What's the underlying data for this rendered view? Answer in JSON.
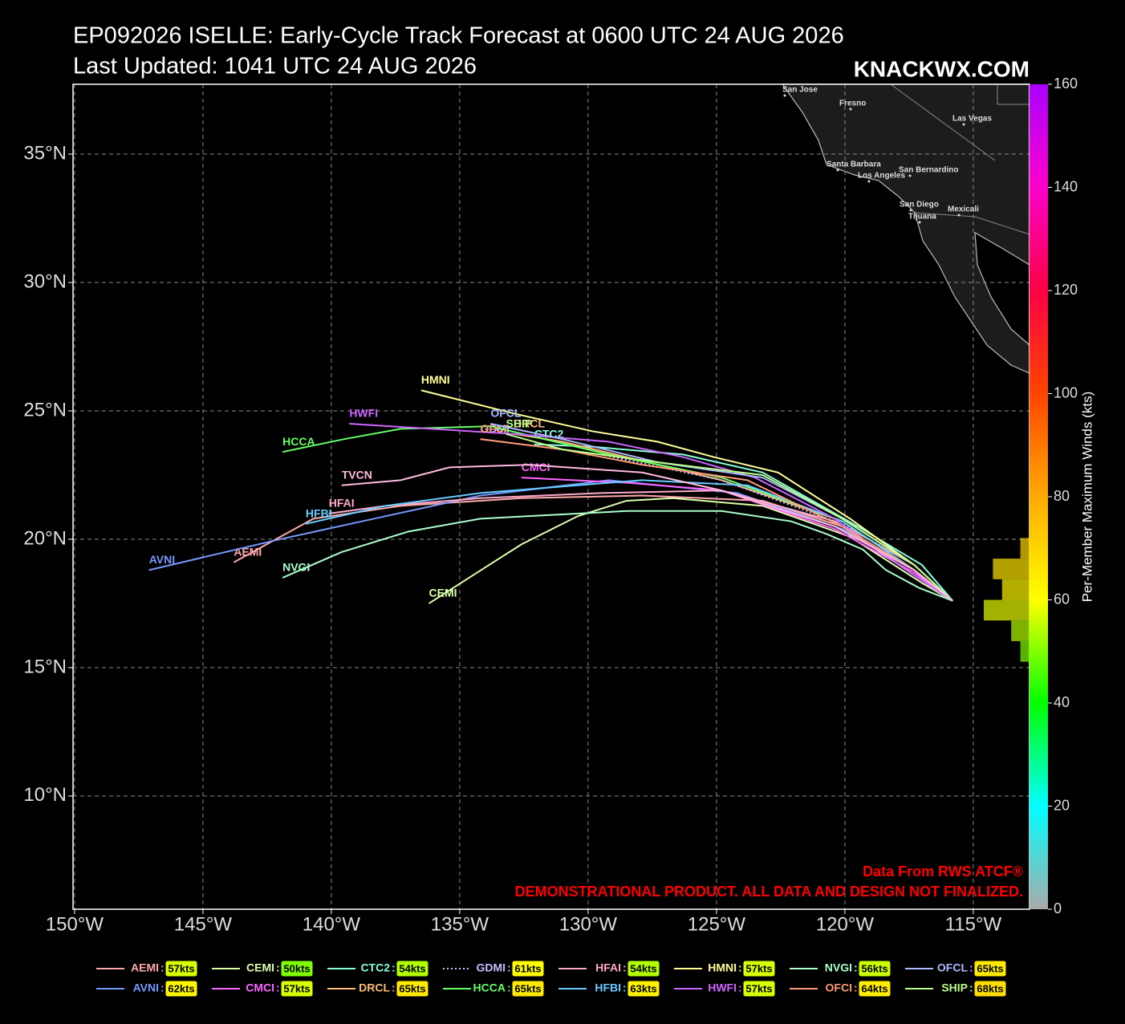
{
  "chart_data": {
    "type": "line",
    "title": "EP092026 ISELLE: Early-Cycle Track Forecast at 0600 UTC 24 AUG 2026",
    "subtitle": "Last Updated: 1041 UTC 24 AUG 2026",
    "brand": "KNACKWX.COM",
    "credit": "Data From RWS ATCF®",
    "disclaimer": "DEMONSTRATIONAL PRODUCT. ALL DATA AND DESIGN NOT FINALIZED.",
    "colorbar_label": "Per-Member Maximum Winds (kts)",
    "xlim": [
      -150.06,
      -112.81
    ],
    "ylim": [
      5.59,
      37.72
    ],
    "xticks": [
      {
        "value": -150,
        "label": "150°W"
      },
      {
        "value": -145,
        "label": "145°W"
      },
      {
        "value": -140,
        "label": "140°W"
      },
      {
        "value": -135,
        "label": "135°W"
      },
      {
        "value": -130,
        "label": "130°W"
      },
      {
        "value": -125,
        "label": "125°W"
      },
      {
        "value": -120,
        "label": "120°W"
      },
      {
        "value": -115,
        "label": "115°W"
      }
    ],
    "yticks": [
      {
        "value": 10,
        "label": "10°N"
      },
      {
        "value": 15,
        "label": "15°N"
      },
      {
        "value": 20,
        "label": "20°N"
      },
      {
        "value": 25,
        "label": "25°N"
      },
      {
        "value": 30,
        "label": "30°N"
      },
      {
        "value": 35,
        "label": "35°N"
      }
    ],
    "grid": true,
    "clim": [
      0,
      160
    ],
    "cticks": [
      0,
      20,
      40,
      60,
      80,
      100,
      120,
      140,
      160
    ],
    "colormap": [
      "#aaaaaa",
      "#00ffff",
      "#00ff00",
      "#ffff00",
      "#ffaa00",
      "#ff4400",
      "#ff0044",
      "#ff00cc",
      "#aa00ff"
    ],
    "wind_histogram": {
      "bins": [
        48,
        52,
        56,
        60,
        64,
        68,
        72
      ],
      "counts": [
        1,
        2,
        5,
        3,
        4,
        1
      ]
    },
    "cities": [
      "San Jose",
      "Fresno",
      "Las Vegas",
      "Santa Barbara",
      "Los Angeles",
      "San Bernardino",
      "San Diego",
      "Tijuana",
      "Mexicali"
    ],
    "series": [
      {
        "name": "AEMI",
        "color": "#ffaaaa",
        "wind": 57,
        "wind_label": "57kts",
        "x": [
          -115.8,
          -117.3,
          -119.8,
          -123.2,
          -127.9,
          -132.6,
          -137.3,
          -140.7,
          -143.8
        ],
        "y": [
          17.6,
          19.0,
          20.4,
          21.5,
          21.7,
          21.6,
          21.3,
          20.8,
          19.1
        ]
      },
      {
        "name": "AVNI",
        "color": "#7799ff",
        "wind": 62,
        "wind_label": "62kts",
        "x": [
          -115.8,
          -117.3,
          -120.1,
          -124.2,
          -129.2,
          -134.2,
          -138.8,
          -142.0,
          -147.1
        ],
        "y": [
          17.6,
          18.8,
          20.4,
          21.8,
          22.3,
          21.7,
          20.7,
          20.0,
          18.8
        ]
      },
      {
        "name": "CEMI",
        "color": "#ddffaa",
        "wind": 50,
        "wind_label": "50kts",
        "x": [
          -115.8,
          -117.0,
          -119.8,
          -123.2,
          -126.7,
          -128.5,
          -130.4,
          -132.6,
          -136.2
        ],
        "y": [
          17.6,
          18.3,
          20.1,
          21.3,
          21.6,
          21.5,
          20.9,
          19.8,
          17.5
        ]
      },
      {
        "name": "CMCI",
        "color": "#ff66ff",
        "wind": 57,
        "wind_label": "57kts",
        "x": [
          -115.8,
          -117.3,
          -120.4,
          -124.8,
          -128.5,
          -132.6
        ],
        "y": [
          17.6,
          18.7,
          20.4,
          21.9,
          22.2,
          22.4
        ]
      },
      {
        "name": "CTC2",
        "color": "#88ffdd",
        "wind": 54,
        "wind_label": "54kts",
        "x": [
          -115.8,
          -117.0,
          -119.5,
          -123.2,
          -126.3,
          -129.8,
          -132.1
        ],
        "y": [
          17.6,
          19.0,
          20.5,
          22.6,
          23.3,
          23.6,
          23.7
        ]
      },
      {
        "name": "DRCL",
        "color": "#ffbb77",
        "wind": 65,
        "wind_label": "65kts",
        "x": [
          -115.8,
          -117.3,
          -120.1,
          -124.8,
          -128.5,
          -131.0,
          -132.9
        ],
        "y": [
          17.6,
          18.8,
          20.7,
          22.3,
          23.2,
          23.8,
          24.1
        ]
      },
      {
        "name": "GDMI",
        "color": "#ccbbff",
        "linestyle": "dotted",
        "wind": 61,
        "wind_label": "61kts",
        "x": [
          -115.8,
          -117.3,
          -120.1,
          -124.8,
          -129.5,
          -134.2
        ],
        "y": [
          17.6,
          19.0,
          20.6,
          22.3,
          23.3,
          23.9
        ]
      },
      {
        "name": "HCCA",
        "color": "#66ff66",
        "wind": 65,
        "wind_label": "65kts",
        "x": [
          -115.8,
          -117.3,
          -120.1,
          -124.8,
          -129.2,
          -133.8,
          -137.3,
          -139.5,
          -141.9
        ],
        "y": [
          17.6,
          18.8,
          20.7,
          22.4,
          23.3,
          24.4,
          24.3,
          23.9,
          23.4
        ]
      },
      {
        "name": "HFAI",
        "color": "#ffaacc",
        "wind": 54,
        "wind_label": "54kts",
        "x": [
          -115.8,
          -117.6,
          -120.4,
          -124.8,
          -129.5,
          -134.2,
          -137.9,
          -140.1
        ],
        "y": [
          17.6,
          18.8,
          20.7,
          21.9,
          21.8,
          21.6,
          21.3,
          21.0
        ]
      },
      {
        "name": "HFBI",
        "color": "#66ccff",
        "wind": 63,
        "wind_label": "63kts",
        "x": [
          -115.8,
          -117.3,
          -120.1,
          -123.8,
          -127.9,
          -134.2,
          -137.9,
          -141.0
        ],
        "y": [
          17.6,
          18.8,
          20.7,
          22.1,
          22.3,
          21.8,
          21.3,
          20.6
        ]
      },
      {
        "name": "HMNI",
        "color": "#ffff99",
        "wind": 57,
        "wind_label": "57kts",
        "x": [
          -115.8,
          -117.3,
          -119.8,
          -122.6,
          -125.1,
          -127.3,
          -129.8,
          -132.9,
          -136.5
        ],
        "y": [
          17.6,
          19.0,
          20.8,
          22.6,
          23.2,
          23.8,
          24.2,
          24.9,
          25.8
        ]
      },
      {
        "name": "HWFI",
        "color": "#cc66ff",
        "wind": 57,
        "wind_label": "57kts",
        "x": [
          -115.8,
          -117.6,
          -120.4,
          -123.5,
          -126.3,
          -129.2,
          -132.9,
          -139.3
        ],
        "y": [
          17.6,
          18.8,
          20.8,
          22.4,
          23.2,
          23.8,
          24.1,
          24.5
        ]
      },
      {
        "name": "NVGI",
        "color": "#aaffcc",
        "wind": 56,
        "wind_label": "56kts",
        "x": [
          -115.8,
          -117.1,
          -118.4,
          -119.3,
          -120.7,
          -122.1,
          -124.8,
          -128.5,
          -134.2,
          -137.0,
          -139.6,
          -141.9
        ],
        "y": [
          17.6,
          18.1,
          18.8,
          19.6,
          20.2,
          20.7,
          21.1,
          21.1,
          20.8,
          20.3,
          19.5,
          18.5
        ]
      },
      {
        "name": "OFCI",
        "color": "#ff9977",
        "wind": 64,
        "wind_label": "64kts",
        "x": [
          -115.8,
          -117.3,
          -120.1,
          -123.8,
          -127.9,
          -131.0,
          -134.2
        ],
        "y": [
          17.6,
          18.8,
          20.5,
          22.3,
          22.9,
          23.5,
          23.9
        ]
      },
      {
        "name": "OFCL",
        "color": "#aabbff",
        "wind": 65,
        "wind_label": "65kts",
        "x": [
          -115.8,
          -117.3,
          -120.1,
          -123.2,
          -127.3,
          -131.0,
          -133.8
        ],
        "y": [
          17.6,
          19.0,
          20.8,
          22.4,
          23.0,
          23.9,
          24.5
        ]
      },
      {
        "name": "SHIP",
        "color": "#bbff88",
        "wind": 68,
        "wind_label": "68kts",
        "x": [
          -115.8,
          -117.3,
          -120.1,
          -123.2,
          -127.3,
          -131.0,
          -133.2
        ],
        "y": [
          17.6,
          19.0,
          20.8,
          22.5,
          23.0,
          23.5,
          24.1
        ]
      },
      {
        "name": "TVCN",
        "color": "#ffbbdd",
        "x": [
          -115.8,
          -117.3,
          -120.4,
          -124.8,
          -127.9,
          -132.3,
          -135.4,
          -137.3,
          -139.6
        ],
        "y": [
          17.6,
          18.8,
          20.5,
          21.9,
          22.6,
          22.9,
          22.8,
          22.3,
          22.1
        ]
      }
    ]
  }
}
